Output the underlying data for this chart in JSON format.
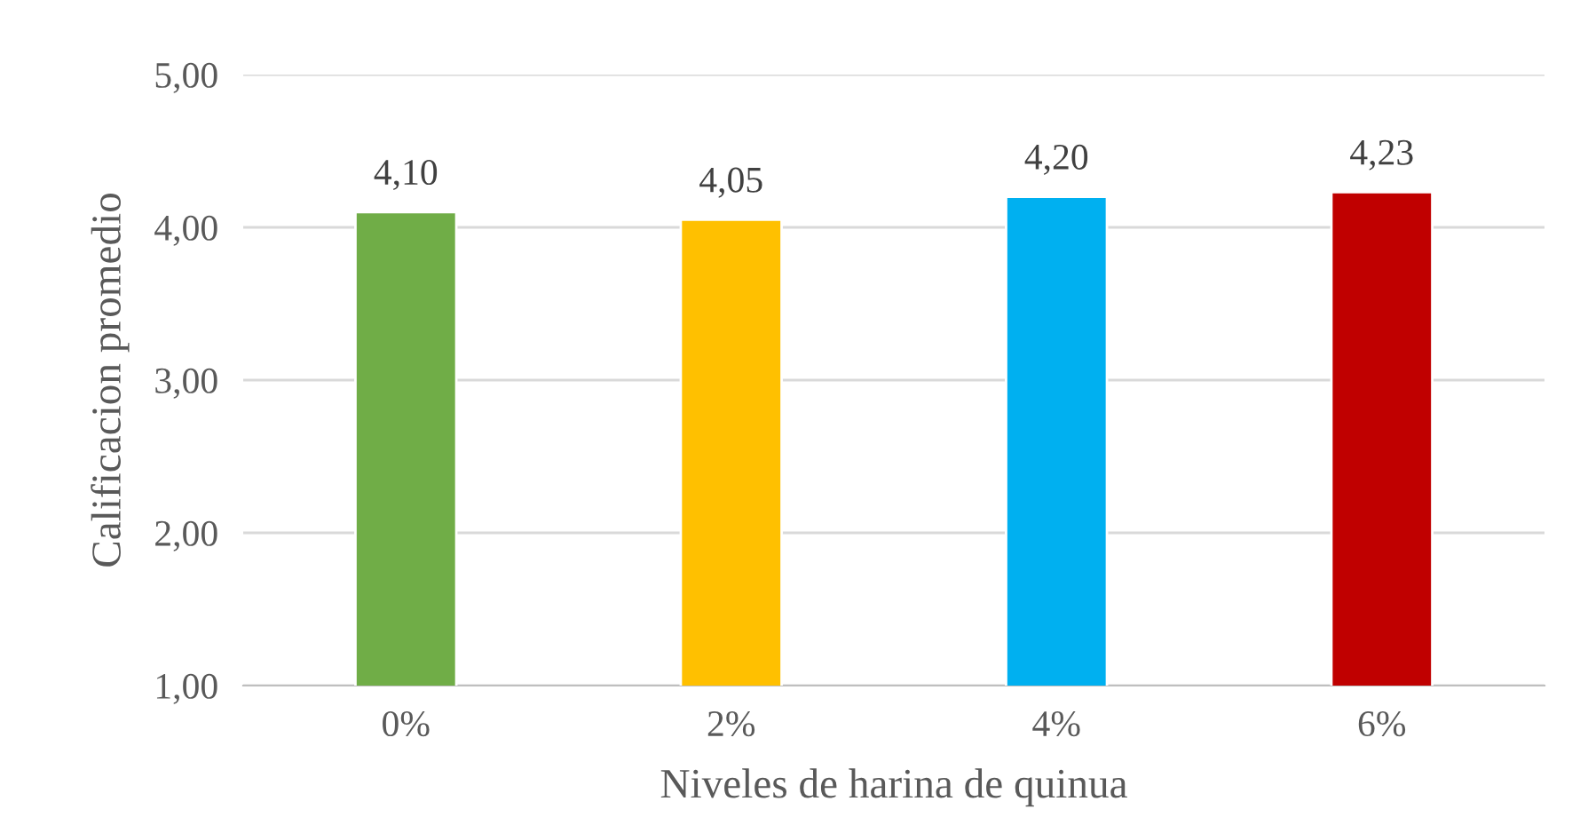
{
  "chart_data": {
    "type": "bar",
    "xlabel": "Niveles de harina de quinua",
    "ylabel": "Calificacion promedio",
    "categories": [
      "0%",
      "2%",
      "4%",
      "6%"
    ],
    "values": [
      4.1,
      4.05,
      4.2,
      4.23
    ],
    "colors": [
      "#70ad47",
      "#ffc000",
      "#00b0f0",
      "#c00000"
    ],
    "value_labels": [
      "4,10",
      "4,05",
      "4,20",
      "4,23"
    ],
    "ylim": [
      1,
      5
    ],
    "yticks": [
      {
        "value": 1,
        "label": "1,00"
      },
      {
        "value": 2,
        "label": "2,00"
      },
      {
        "value": 3,
        "label": "3,00"
      },
      {
        "value": 4,
        "label": "4,00"
      },
      {
        "value": 5,
        "label": "5,00"
      }
    ],
    "grid": "y",
    "legend": false
  }
}
